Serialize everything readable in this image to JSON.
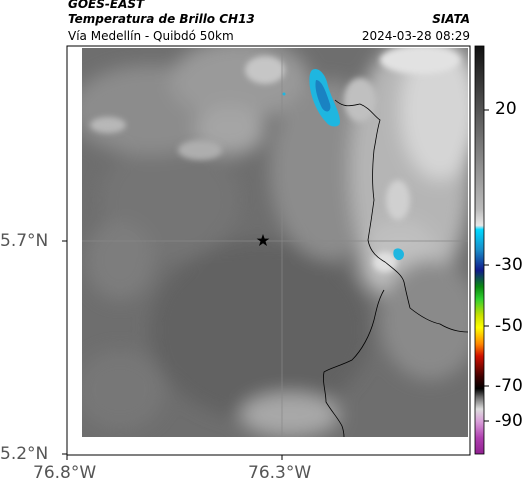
{
  "header": {
    "satellite": "GOES-EAST",
    "product": "Temperatura de Brillo CH13",
    "route": "Vía Medellín - Quibdó 50km",
    "organization": "SIATA",
    "datetime": "2024-03-28 08:29"
  },
  "axes": {
    "lat_ticks": [
      "5.7°N",
      "5.2°N"
    ],
    "lon_ticks": [
      "76.8°W",
      "76.3°W"
    ]
  },
  "colorbar": {
    "ticks": [
      "20",
      "-30",
      "-50",
      "-70",
      "-90"
    ]
  },
  "marker": {
    "icon": "star-icon"
  },
  "colors": {
    "frame": "#000000",
    "tick_text": "#555555",
    "cold_cloud": "#1fb6e0"
  }
}
